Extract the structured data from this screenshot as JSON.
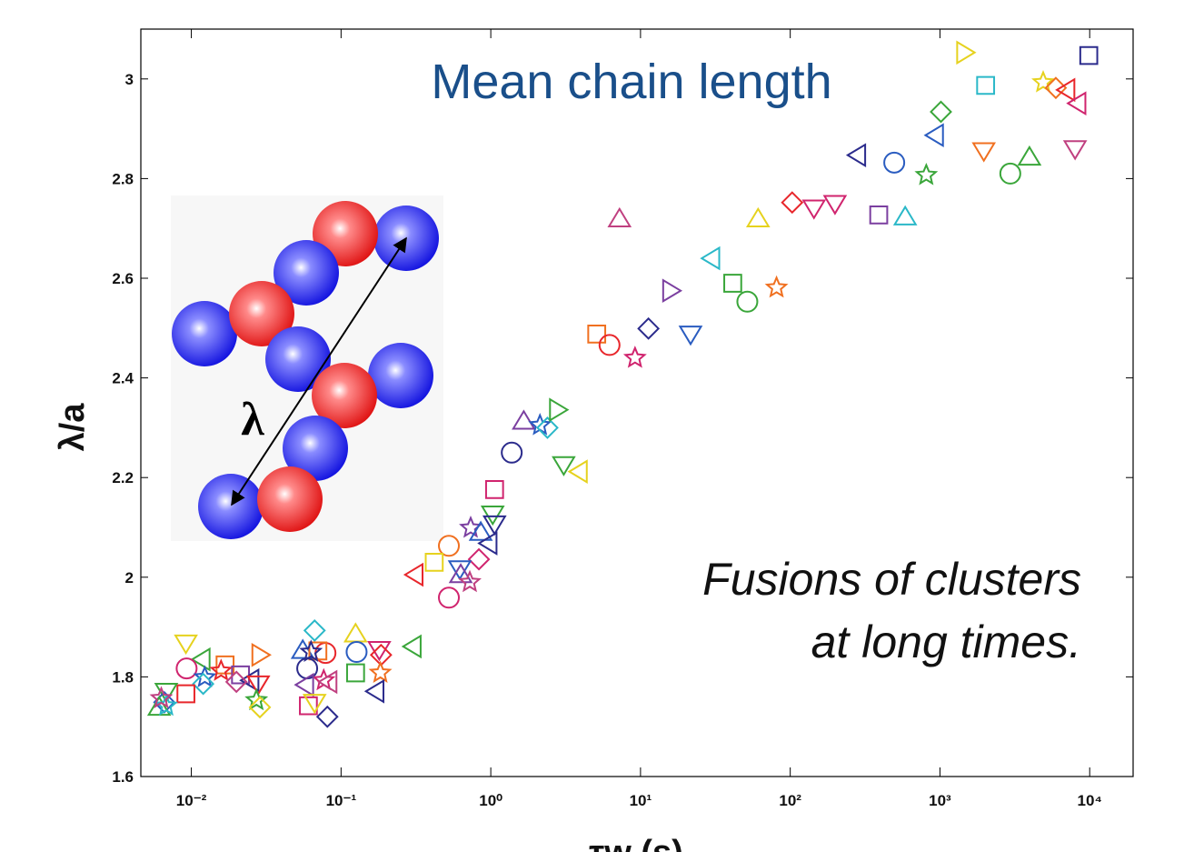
{
  "chart_data": {
    "type": "scatter",
    "title": "Mean chain length",
    "annotation": [
      "Fusions of clusters",
      "at long times."
    ],
    "inset_label": "λ",
    "x_label": "τw (s)",
    "y_label": "λ/a",
    "xscale": "log",
    "xlim": [
      0.0046,
      19500
    ],
    "ylim": [
      1.6,
      3.1
    ],
    "xticks": [
      {
        "value": 0.01,
        "label": "10⁻²"
      },
      {
        "value": 0.1,
        "label": "10⁻¹"
      },
      {
        "value": 1,
        "label": "10⁰"
      },
      {
        "value": 10,
        "label": "10¹"
      },
      {
        "value": 100,
        "label": "10²"
      },
      {
        "value": 1000,
        "label": "10³"
      },
      {
        "value": 10000,
        "label": "10⁴"
      }
    ],
    "yticks": [
      1.6,
      1.8,
      2,
      2.2,
      2.4,
      2.6,
      2.8,
      3
    ],
    "x": [
      1462,
      9860,
      2018,
      4890,
      5940,
      7040,
      8340,
      1015,
      933,
      282,
      495,
      810,
      1963,
      3960,
      2950,
      7990,
      103,
      144,
      199,
      390,
      586,
      61,
      7.24,
      29.9,
      41.3,
      51.7,
      81,
      15.9,
      11.3,
      21.6,
      5.1,
      6.21,
      9.19,
      1.66,
      2.13,
      2.39,
      2.79,
      1.38,
      3.07,
      3.9,
      1.06,
      1.03,
      1.06,
      0.734,
      0.857,
      0.973,
      0.833,
      0.525,
      0.419,
      0.312,
      0.621,
      0.63,
      0.724,
      0.525,
      0.303,
      0.0666,
      0.125,
      0.0092,
      0.0287,
      0.0787,
      0.0555,
      0.07,
      0.063,
      0.127,
      0.18,
      0.185,
      0.0118,
      0.0168,
      0.0093,
      0.0594,
      0.125,
      0.183,
      0.0123,
      0.0158,
      0.0213,
      0.025,
      0.028,
      0.02,
      0.0766,
      0.083,
      0.058,
      0.012,
      0.0092,
      0.171,
      0.0068,
      0.0066,
      0.0061,
      0.0068,
      0.0272,
      0.0287,
      0.0605,
      0.0666,
      0.081,
      0.0063
    ],
    "y": [
      3.053,
      3.047,
      2.987,
      2.993,
      2.982,
      2.978,
      2.951,
      2.934,
      2.887,
      2.847,
      2.832,
      2.807,
      2.856,
      2.843,
      2.81,
      2.86,
      2.752,
      2.741,
      2.75,
      2.727,
      2.723,
      2.719,
      2.719,
      2.64,
      2.59,
      2.553,
      2.581,
      2.575,
      2.499,
      2.488,
      2.488,
      2.466,
      2.44,
      2.313,
      2.305,
      2.3,
      2.336,
      2.25,
      2.226,
      2.212,
      2.176,
      2.127,
      2.107,
      2.099,
      2.09,
      2.068,
      2.036,
      2.063,
      2.03,
      2.005,
      2.017,
      2.005,
      1.99,
      1.959,
      1.861,
      1.893,
      1.886,
      1.868,
      1.844,
      1.848,
      1.853,
      1.852,
      1.85,
      1.85,
      1.855,
      1.844,
      1.835,
      1.824,
      1.817,
      1.817,
      1.808,
      1.808,
      1.799,
      1.812,
      1.804,
      1.793,
      1.786,
      1.79,
      1.793,
      1.79,
      1.784,
      1.786,
      1.766,
      1.771,
      1.771,
      1.749,
      1.739,
      1.742,
      1.753,
      1.739,
      1.742,
      1.749,
      1.72,
      1.757
    ],
    "markers": [
      "right",
      "square",
      "square",
      "star",
      "diamond",
      "left",
      "left",
      "diamond",
      "left",
      "left",
      "circle",
      "star",
      "down",
      "up",
      "circle",
      "down",
      "diamond",
      "down",
      "down",
      "square",
      "up",
      "up",
      "up",
      "left",
      "square",
      "circle",
      "star",
      "right",
      "diamond",
      "down",
      "square",
      "circle",
      "star",
      "up",
      "star",
      "diamond",
      "right",
      "circle",
      "down",
      "left",
      "square",
      "down",
      "down",
      "star",
      "up",
      "left",
      "diamond",
      "circle",
      "square",
      "left",
      "down",
      "up",
      "star",
      "circle",
      "left",
      "diamond",
      "up",
      "down",
      "right",
      "circle",
      "up",
      "square",
      "star",
      "circle",
      "down",
      "diamond",
      "left",
      "square",
      "circle",
      "circle",
      "square",
      "star",
      "star",
      "star",
      "square",
      "left",
      "down",
      "diamond",
      "star",
      "left",
      "left",
      "diamond",
      "square",
      "left",
      "down",
      "diamond",
      "up",
      "star",
      "star",
      "diamond",
      "square",
      "down",
      "diamond",
      "star"
    ],
    "colors": [
      "#e6d21e",
      "#2b2b8c",
      "#2ab8c8",
      "#e6d21e",
      "#f07020",
      "#e8262b",
      "#d0246e",
      "#3aa63a",
      "#2a5cc0",
      "#2b2b8c",
      "#2a5cc0",
      "#3aa63a",
      "#f07020",
      "#3aa63a",
      "#3aa63a",
      "#c04080",
      "#e8262b",
      "#d0246e",
      "#d0246e",
      "#7b3fa0",
      "#2ab8c8",
      "#e6d21e",
      "#c04080",
      "#2ab8c8",
      "#3aa63a",
      "#3aa63a",
      "#f07020",
      "#7b3fa0",
      "#2b2b8c",
      "#2a5cc0",
      "#f07020",
      "#e8262b",
      "#d0246e",
      "#7b3fa0",
      "#2a5cc0",
      "#2ab8c8",
      "#3aa63a",
      "#2b2b8c",
      "#3aa63a",
      "#e6d21e",
      "#d0246e",
      "#3aa63a",
      "#2b2b8c",
      "#7b3fa0",
      "#2a5cc0",
      "#2b2b8c",
      "#d0246e",
      "#f07020",
      "#e6d21e",
      "#e8262b",
      "#2a5cc0",
      "#7b3fa0",
      "#c04080",
      "#d0246e",
      "#3aa63a",
      "#2ab8c8",
      "#e6d21e",
      "#e6d21e",
      "#f07020",
      "#e8262b",
      "#2a5cc0",
      "#f07020",
      "#2b2b8c",
      "#2a5cc0",
      "#d0246e",
      "#e8262b",
      "#3aa63a",
      "#f07020",
      "#d0246e",
      "#2b2b8c",
      "#3aa63a",
      "#f07020",
      "#2a5cc0",
      "#e8262b",
      "#7b3fa0",
      "#2b2b8c",
      "#e8262b",
      "#c04080",
      "#d0246e",
      "#c04080",
      "#7b3fa0",
      "#2ab8c8",
      "#e8262b",
      "#2b2b8c",
      "#3aa63a",
      "#2a5cc0",
      "#3aa63a",
      "#2ab8c8",
      "#3aa63a",
      "#e6d21e",
      "#d0246e",
      "#e6d21e",
      "#2b2b8c",
      "#c04080"
    ]
  }
}
